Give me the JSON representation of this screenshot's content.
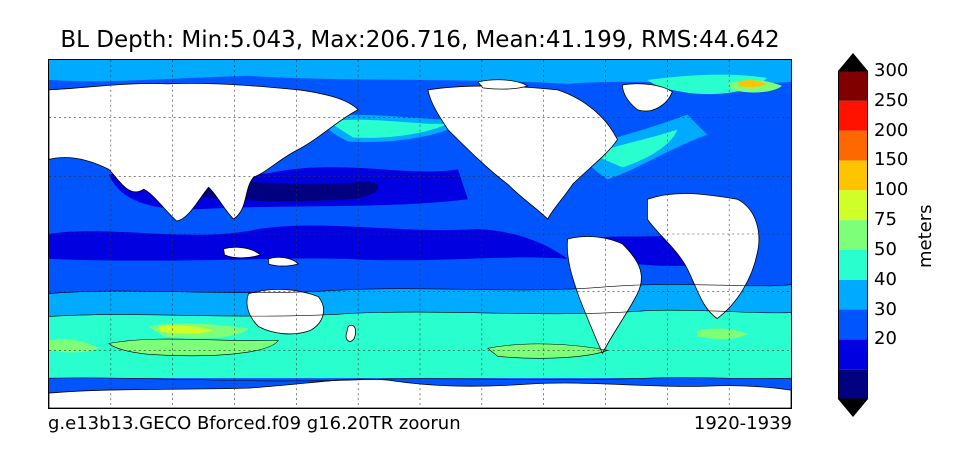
{
  "title": "BL Depth: Min:5.043, Max:206.716, Mean:41.199, RMS:44.642",
  "footer": {
    "case_name": "g.e13b13.GECO Bforced.f09 g16.20TR zoorun",
    "period": "1920-1939"
  },
  "colorbar": {
    "units": "meters",
    "levels": [
      {
        "value": null,
        "color": "#000080"
      },
      {
        "value": "20",
        "color": "#0000e0"
      },
      {
        "value": "30",
        "color": "#0055ff"
      },
      {
        "value": "40",
        "color": "#00aaff"
      },
      {
        "value": "50",
        "color": "#29ffce"
      },
      {
        "value": "75",
        "color": "#7dff7a"
      },
      {
        "value": "100",
        "color": "#ceff29"
      },
      {
        "value": "150",
        "color": "#ffc400"
      },
      {
        "value": "200",
        "color": "#ff6800"
      },
      {
        "value": "250",
        "color": "#ff1300"
      },
      {
        "value": "300",
        "color": "#800000"
      }
    ],
    "extend": "both"
  },
  "map": {
    "field": "boundary layer depth",
    "projection": "cylindrical",
    "gridlines": true,
    "land_color": "#ffffff",
    "coastline_color": "#000000"
  }
}
